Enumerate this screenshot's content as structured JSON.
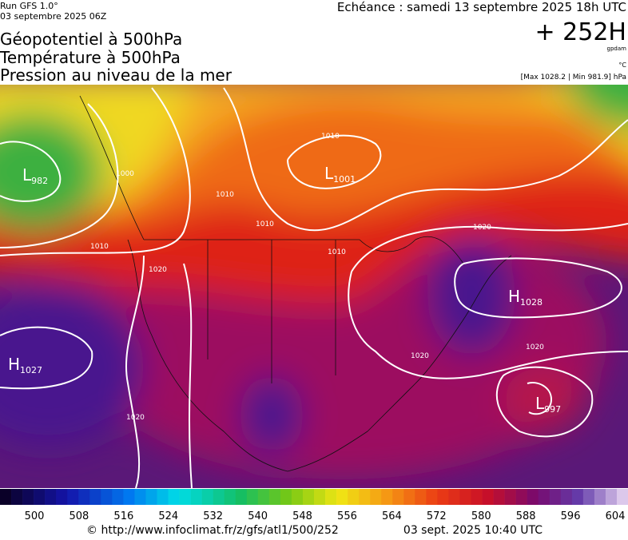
{
  "header": {
    "run": "Run GFS 1.0°",
    "run_date": "03 septembre 2025 06Z",
    "forecast": "Echéance : samedi 13 septembre 2025 18h UTC",
    "lines": [
      "Géopotentiel à 500hPa",
      "Température à 500hPa",
      "Pression au niveau de la mer"
    ],
    "lead": "+ 252H",
    "unit_geo": "gpdam",
    "unit_temp": "°C",
    "range": "[Max 1028.2 | Min 981.9] hPa"
  },
  "map": {
    "centers": [
      {
        "type": "L",
        "value": "982"
      },
      {
        "type": "L",
        "value": "1001"
      },
      {
        "type": "H",
        "value": "1028"
      },
      {
        "type": "H",
        "value": "1027"
      },
      {
        "type": "L",
        "value": "997"
      }
    ],
    "isobar_labels": [
      "1010",
      "1000",
      "1010",
      "1010",
      "1010",
      "1010",
      "1020",
      "1020",
      "1020",
      "1020",
      "1020"
    ]
  },
  "legend": {
    "labels": [
      500,
      508,
      516,
      524,
      532,
      540,
      548,
      556,
      564,
      572,
      580,
      588,
      596,
      604
    ]
  },
  "footer": {
    "url": "© http://www.infoclimat.fr/z/gfs/atl1/500/252",
    "date": "03 sept. 2025 10:40 UTC"
  }
}
